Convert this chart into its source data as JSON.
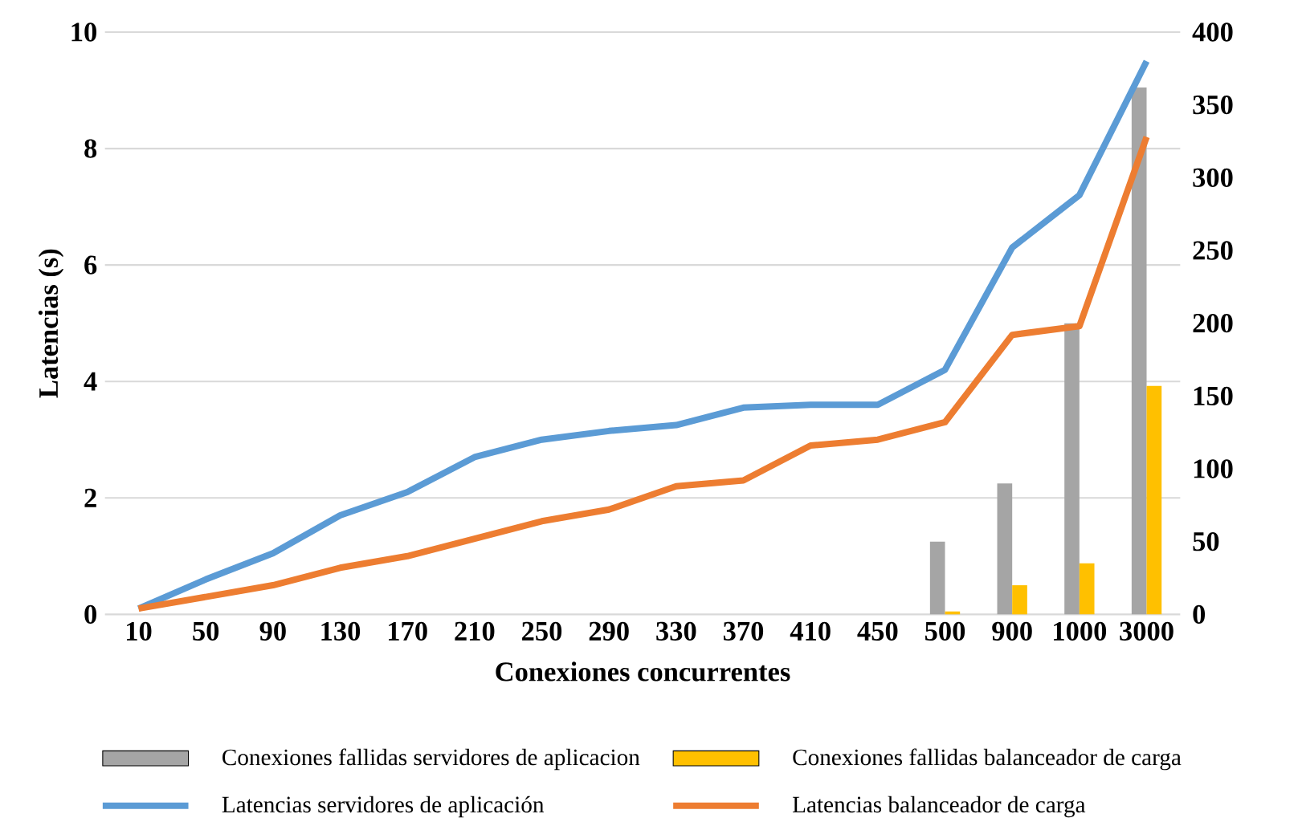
{
  "chart_data": {
    "type": "bar",
    "xlabel": "Conexiones concurrentes",
    "ylabel": "Latencias (s)",
    "categories": [
      "10",
      "50",
      "90",
      "130",
      "170",
      "210",
      "250",
      "290",
      "330",
      "370",
      "410",
      "450",
      "500",
      "900",
      "1000",
      "3000"
    ],
    "series": [
      {
        "name": "Conexiones fallidas servidores de aplicacion",
        "axis": "y2",
        "color": "#a5a5a5",
        "values": [
          0,
          0,
          0,
          0,
          0,
          0,
          0,
          0,
          0,
          0,
          0,
          0,
          50,
          90,
          200,
          362
        ]
      },
      {
        "name": "Conexiones fallidas balanceador de carga",
        "axis": "y2",
        "color": "#ffc000",
        "values": [
          0,
          0,
          0,
          0,
          0,
          0,
          0,
          0,
          0,
          0,
          0,
          0,
          2,
          20,
          35,
          157
        ]
      },
      {
        "name": "Latencias servidores de aplicación",
        "type": "line",
        "color": "#5b9bd5",
        "values": [
          0.1,
          0.6,
          1.05,
          1.7,
          2.1,
          2.7,
          3.0,
          3.15,
          3.25,
          3.55,
          3.6,
          3.6,
          4.2,
          6.3,
          7.2,
          9.5
        ]
      },
      {
        "name": "Latencias balanceador de carga",
        "type": "line",
        "color": "#ed7d31",
        "values": [
          0.1,
          0.3,
          0.5,
          0.8,
          1.0,
          1.3,
          1.6,
          1.8,
          2.2,
          2.3,
          2.9,
          3.0,
          3.3,
          4.8,
          4.95,
          8.2
        ]
      }
    ],
    "ylim": [
      0,
      10
    ],
    "yticks": [
      0,
      2,
      4,
      6,
      8,
      10
    ],
    "y2lim": [
      0,
      400
    ],
    "y2ticks": [
      0,
      50,
      100,
      150,
      200,
      250,
      300,
      350,
      400
    ],
    "grid": "y",
    "legend": "bottom"
  }
}
